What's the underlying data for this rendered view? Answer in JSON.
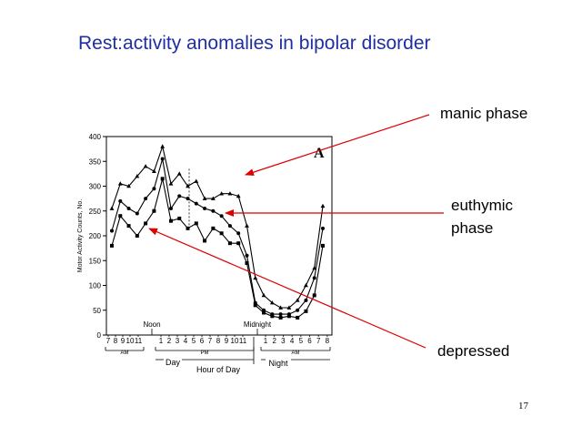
{
  "slide": {
    "title": "Rest:activity anomalies in bipolar disorder",
    "callouts": {
      "manic": "manic phase",
      "euthymic_1": "euthymic",
      "euthymic_2": "phase",
      "depressed": "depressed"
    },
    "page_number": "17",
    "colors": {
      "title": "#1f2fa0",
      "arrow": "#dd0000",
      "plot": "#000000"
    }
  },
  "chart_data": {
    "type": "line",
    "panel_label": "A",
    "title": "",
    "ylabel": "Motor Activity Counts, No.",
    "xlabel": "Hour of Day",
    "ylim": [
      0,
      400
    ],
    "yticks": [
      0,
      50,
      100,
      150,
      200,
      250,
      300,
      350,
      400
    ],
    "x_tick_labels": [
      "7",
      "8",
      "9",
      "10",
      "11",
      "1",
      "2",
      "3",
      "4",
      "5",
      "6",
      "7",
      "8",
      "9",
      "10",
      "11",
      "1",
      "2",
      "3",
      "4",
      "5",
      "6",
      "7",
      "8"
    ],
    "x_annotations": {
      "noon": "Noon",
      "midnight": "Midnight",
      "am1": "AM",
      "pm": "PM",
      "am2": "AM",
      "day": "Day",
      "night": "Night"
    },
    "series": [
      {
        "marker": "triangle",
        "values": [
          255,
          305,
          300,
          320,
          340,
          330,
          380,
          305,
          325,
          300,
          310,
          275,
          275,
          285,
          285,
          280,
          220,
          115,
          80,
          65,
          55,
          55,
          70,
          100,
          135,
          260
        ]
      },
      {
        "marker": "circle",
        "values": [
          210,
          270,
          255,
          245,
          275,
          295,
          355,
          255,
          280,
          275,
          265,
          255,
          250,
          240,
          220,
          205,
          160,
          65,
          50,
          42,
          42,
          42,
          50,
          70,
          115,
          215
        ]
      },
      {
        "marker": "square",
        "values": [
          180,
          240,
          220,
          200,
          225,
          250,
          315,
          230,
          235,
          215,
          225,
          190,
          215,
          205,
          185,
          185,
          145,
          60,
          45,
          38,
          35,
          38,
          35,
          48,
          80,
          180
        ]
      }
    ]
  }
}
